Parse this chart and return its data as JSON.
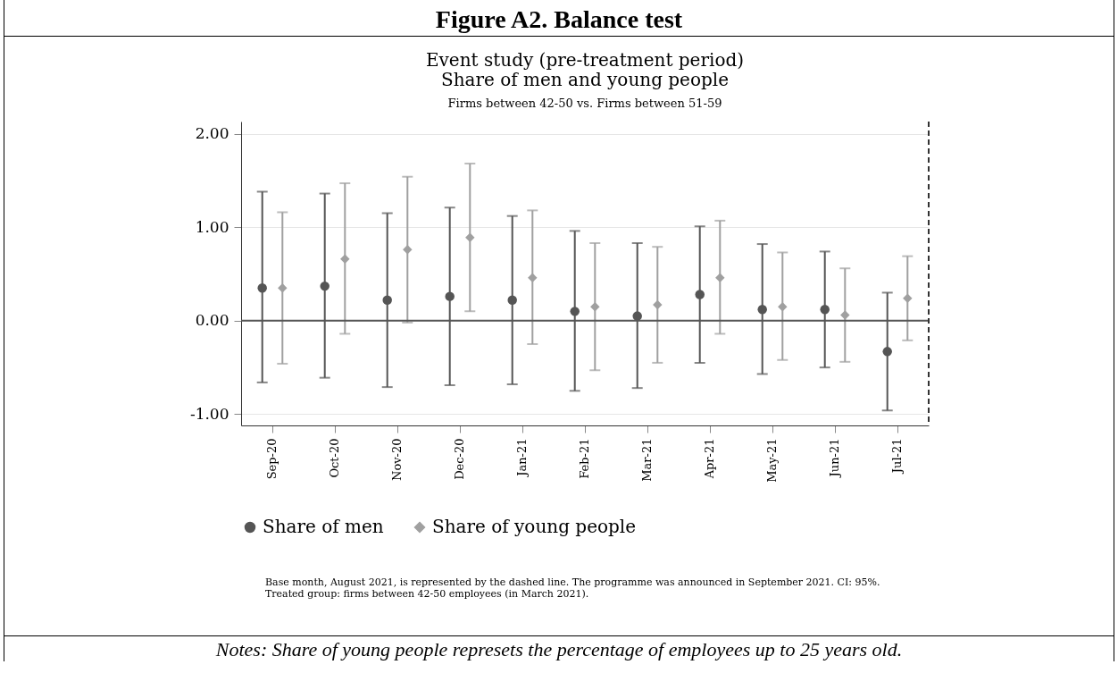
{
  "chart_data": {
    "type": "scatter",
    "title": "Event study (pre-treatment period)\nShare of men and young people",
    "subtitle": "Firms between 42-50 vs. Firms between 51-59",
    "categories": [
      "Sep-20",
      "Oct-20",
      "Nov-20",
      "Dec-20",
      "Jan-21",
      "Feb-21",
      "Mar-21",
      "Apr-21",
      "May-21",
      "Jun-21",
      "Jul-21"
    ],
    "series": [
      {
        "name": "Share of men",
        "color": "#555555",
        "marker": "circle",
        "values": [
          0.35,
          0.37,
          0.22,
          0.26,
          0.22,
          0.1,
          0.05,
          0.28,
          0.12,
          0.12,
          -0.33
        ],
        "errors": [
          [
            -0.66,
            1.38
          ],
          [
            -0.61,
            1.36
          ],
          [
            -0.71,
            1.15
          ],
          [
            -0.69,
            1.21
          ],
          [
            -0.68,
            1.12
          ],
          [
            -0.75,
            0.96
          ],
          [
            -0.72,
            0.83
          ],
          [
            -0.45,
            1.01
          ],
          [
            -0.57,
            0.82
          ],
          [
            -0.5,
            0.74
          ],
          [
            -0.96,
            0.3
          ]
        ]
      },
      {
        "name": "Share of young people",
        "color": "#a0a0a0",
        "marker": "diamond",
        "values": [
          0.35,
          0.66,
          0.76,
          0.89,
          0.46,
          0.15,
          0.17,
          0.46,
          0.15,
          0.06,
          0.24
        ],
        "errors": [
          [
            -0.46,
            1.16
          ],
          [
            -0.14,
            1.47
          ],
          [
            -0.02,
            1.54
          ],
          [
            0.1,
            1.68
          ],
          [
            -0.25,
            1.18
          ],
          [
            -0.53,
            0.83
          ],
          [
            -0.45,
            0.79
          ],
          [
            -0.14,
            1.07
          ],
          [
            -0.42,
            0.73
          ],
          [
            -0.44,
            0.56
          ],
          [
            -0.21,
            0.69
          ]
        ]
      }
    ],
    "ylim": [
      -1.12,
      2.13
    ],
    "yticks": [
      {
        "value": -1,
        "label": "-1.00"
      },
      {
        "value": 0,
        "label": "0.00"
      },
      {
        "value": 1,
        "label": "1.00"
      },
      {
        "value": 2,
        "label": "2.00"
      }
    ],
    "grid": "y",
    "legend": "bottom",
    "ref_lines": [
      {
        "axis": "y",
        "value": 0,
        "color": "#555555",
        "line_style": "solid"
      },
      {
        "axis": "x",
        "color": "#333333",
        "line_style": "dashed"
      }
    ],
    "annotations": [
      "Figure A2. Balance test",
      "Base month, August 2021, is represented by the dashed line. The programme was announced in September 2021. CI: 95%.\nTreated group: firms between 42-50 employees (in March 2021).",
      "Notes: Share of young people represets the percentage of employees up to 25 years old."
    ]
  }
}
